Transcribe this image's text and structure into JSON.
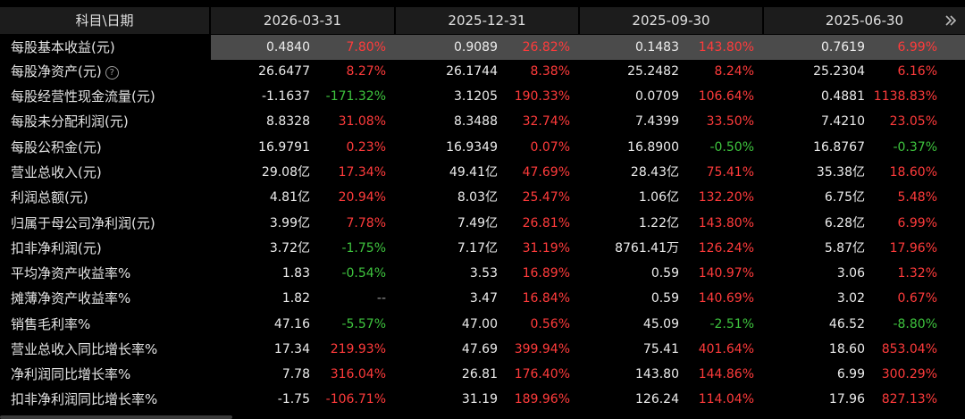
{
  "header": {
    "first": "科目\\日期",
    "dates": [
      "2026-03-31",
      "2025-12-31",
      "2025-09-30",
      "2025-06-30"
    ]
  },
  "rows": [
    {
      "label": "每股基本收益(元)",
      "cells": [
        [
          "0.4840",
          "7.80%",
          "red"
        ],
        [
          "0.9089",
          "26.82%",
          "red"
        ],
        [
          "0.1483",
          "143.80%",
          "red"
        ],
        [
          "0.7619",
          "6.99%",
          "red"
        ]
      ]
    },
    {
      "label": "每股净资产(元)",
      "help": true,
      "cells": [
        [
          "26.6477",
          "8.27%",
          "red"
        ],
        [
          "26.1744",
          "8.38%",
          "red"
        ],
        [
          "25.2482",
          "8.24%",
          "red"
        ],
        [
          "25.2304",
          "6.16%",
          "red"
        ]
      ]
    },
    {
      "label": "每股经营性现金流量(元)",
      "cells": [
        [
          "-1.1637",
          "-171.32%",
          "green"
        ],
        [
          "3.1205",
          "190.33%",
          "red"
        ],
        [
          "0.0709",
          "106.64%",
          "red"
        ],
        [
          "0.4881",
          "1138.83%",
          "red"
        ]
      ]
    },
    {
      "label": "每股未分配利润(元)",
      "cells": [
        [
          "8.8328",
          "31.08%",
          "red"
        ],
        [
          "8.3488",
          "32.74%",
          "red"
        ],
        [
          "7.4399",
          "33.50%",
          "red"
        ],
        [
          "7.4210",
          "23.05%",
          "red"
        ]
      ]
    },
    {
      "label": "每股公积金(元)",
      "cells": [
        [
          "16.9791",
          "0.23%",
          "red"
        ],
        [
          "16.9349",
          "0.07%",
          "red"
        ],
        [
          "16.8900",
          "-0.50%",
          "green"
        ],
        [
          "16.8767",
          "-0.37%",
          "green"
        ]
      ]
    },
    {
      "label": "营业总收入(元)",
      "cells": [
        [
          "29.08亿",
          "17.34%",
          "red"
        ],
        [
          "49.41亿",
          "47.69%",
          "red"
        ],
        [
          "28.43亿",
          "75.41%",
          "red"
        ],
        [
          "35.38亿",
          "18.60%",
          "red"
        ]
      ]
    },
    {
      "label": "利润总额(元)",
      "cells": [
        [
          "4.81亿",
          "20.94%",
          "red"
        ],
        [
          "8.03亿",
          "25.47%",
          "red"
        ],
        [
          "1.06亿",
          "132.20%",
          "red"
        ],
        [
          "6.75亿",
          "5.48%",
          "red"
        ]
      ]
    },
    {
      "label": "归属于母公司净利润(元)",
      "cells": [
        [
          "3.99亿",
          "7.78%",
          "red"
        ],
        [
          "7.49亿",
          "26.81%",
          "red"
        ],
        [
          "1.22亿",
          "143.80%",
          "red"
        ],
        [
          "6.28亿",
          "6.99%",
          "red"
        ]
      ]
    },
    {
      "label": "扣非净利润(元)",
      "cells": [
        [
          "3.72亿",
          "-1.75%",
          "green"
        ],
        [
          "7.17亿",
          "31.19%",
          "red"
        ],
        [
          "8761.41万",
          "126.24%",
          "red"
        ],
        [
          "5.87亿",
          "17.96%",
          "red"
        ]
      ]
    },
    {
      "label": "平均净资产收益率%",
      "cells": [
        [
          "1.83",
          "-0.54%",
          "green"
        ],
        [
          "3.53",
          "16.89%",
          "red"
        ],
        [
          "0.59",
          "140.97%",
          "red"
        ],
        [
          "3.06",
          "1.32%",
          "red"
        ]
      ]
    },
    {
      "label": "摊薄净资产收益率%",
      "cells": [
        [
          "1.82",
          "--",
          "gray"
        ],
        [
          "3.47",
          "16.84%",
          "red"
        ],
        [
          "0.59",
          "140.69%",
          "red"
        ],
        [
          "3.02",
          "0.67%",
          "red"
        ]
      ]
    },
    {
      "label": "销售毛利率%",
      "cells": [
        [
          "47.16",
          "-5.57%",
          "green"
        ],
        [
          "47.00",
          "0.56%",
          "red"
        ],
        [
          "45.09",
          "-2.51%",
          "green"
        ],
        [
          "46.52",
          "-8.80%",
          "green"
        ]
      ]
    },
    {
      "label": "营业总收入同比增长率%",
      "cells": [
        [
          "17.34",
          "219.93%",
          "red"
        ],
        [
          "47.69",
          "399.94%",
          "red"
        ],
        [
          "75.41",
          "401.64%",
          "red"
        ],
        [
          "18.60",
          "853.04%",
          "red"
        ]
      ]
    },
    {
      "label": "净利润同比增长率%",
      "cells": [
        [
          "7.78",
          "316.04%",
          "red"
        ],
        [
          "26.81",
          "176.40%",
          "red"
        ],
        [
          "143.80",
          "144.86%",
          "red"
        ],
        [
          "6.99",
          "300.29%",
          "red"
        ]
      ]
    },
    {
      "label": "扣非净利润同比增长率%",
      "cells": [
        [
          "-1.75",
          "-106.71%",
          "red"
        ],
        [
          "31.19",
          "189.96%",
          "red"
        ],
        [
          "126.24",
          "114.04%",
          "red"
        ],
        [
          "17.96",
          "827.13%",
          "red"
        ]
      ]
    }
  ],
  "colors": {
    "up": "#ff3b3b",
    "down": "#3ec43e",
    "bg": "#000000",
    "highlight": "#4b4b4b"
  },
  "icons": {
    "more": "double-chevron-right-icon",
    "help": "question-circle-icon"
  }
}
